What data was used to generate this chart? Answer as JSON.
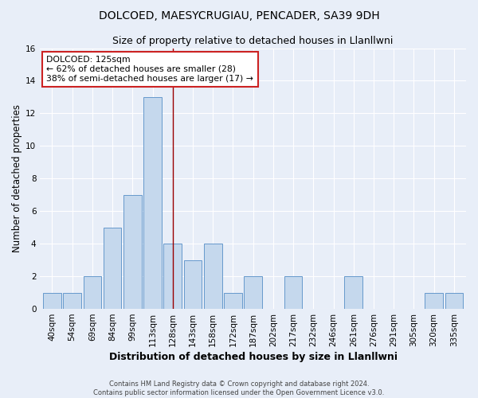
{
  "title": "DOLCOED, MAESYCRUGIAU, PENCADER, SA39 9DH",
  "subtitle": "Size of property relative to detached houses in Llanllwni",
  "xlabel": "Distribution of detached houses by size in Llanllwni",
  "ylabel": "Number of detached properties",
  "categories": [
    "40sqm",
    "54sqm",
    "69sqm",
    "84sqm",
    "99sqm",
    "113sqm",
    "128sqm",
    "143sqm",
    "158sqm",
    "172sqm",
    "187sqm",
    "202sqm",
    "217sqm",
    "232sqm",
    "246sqm",
    "261sqm",
    "276sqm",
    "291sqm",
    "305sqm",
    "320sqm",
    "335sqm"
  ],
  "values": [
    1,
    1,
    2,
    5,
    7,
    13,
    4,
    3,
    4,
    1,
    2,
    0,
    2,
    0,
    0,
    2,
    0,
    0,
    0,
    1,
    1
  ],
  "bar_color": "#c5d8ed",
  "bar_edgecolor": "#6699cc",
  "vline_x_index": 6,
  "vline_color": "#990000",
  "annotation_text": "DOLCOED: 125sqm\n← 62% of detached houses are smaller (28)\n38% of semi-detached houses are larger (17) →",
  "annotation_box_color": "white",
  "annotation_box_edgecolor": "#cc2222",
  "ylim": [
    0,
    16
  ],
  "yticks": [
    0,
    2,
    4,
    6,
    8,
    10,
    12,
    14,
    16
  ],
  "background_color": "#e8eef8",
  "grid_color": "#ffffff",
  "footer_line1": "Contains HM Land Registry data © Crown copyright and database right 2024.",
  "footer_line2": "Contains public sector information licensed under the Open Government Licence v3.0.",
  "title_fontsize": 10,
  "subtitle_fontsize": 9,
  "tick_fontsize": 7.5,
  "ylabel_fontsize": 8.5,
  "xlabel_fontsize": 9
}
